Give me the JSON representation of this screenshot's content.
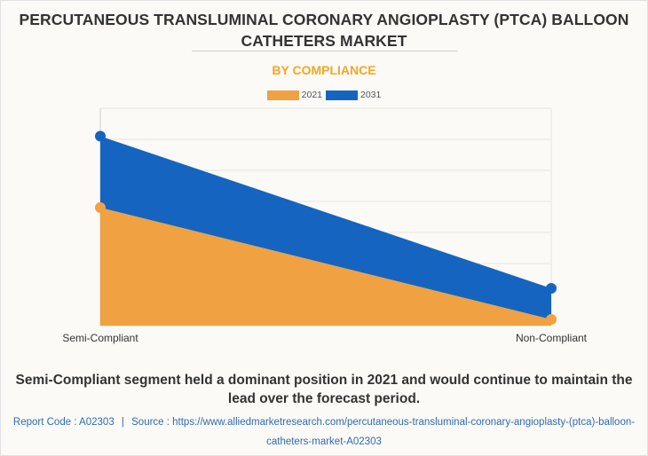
{
  "header": {
    "title": "PERCUTANEOUS TRANSLUMINAL CORONARY ANGIOPLASTY (PTCA) BALLOON CATHETERS MARKET",
    "subtitle": "BY COMPLIANCE"
  },
  "colors": {
    "series_2021": "#f0a141",
    "series_2031": "#1565c0",
    "subtitle": "#f5a623",
    "source_link": "#2e6bb3"
  },
  "chart_data": {
    "type": "area",
    "stacked": true,
    "title": "BY COMPLIANCE",
    "categories": [
      "Semi-Compliant",
      "Non-Compliant"
    ],
    "series": [
      {
        "name": "2021",
        "values": [
          3.8,
          0.2
        ]
      },
      {
        "name": "2031",
        "values": [
          2.3,
          1.0
        ]
      }
    ],
    "ylim": [
      0,
      7
    ],
    "y_ticks_labeled": false,
    "xlabel": "",
    "ylabel": "",
    "grid": true,
    "legend": "top-center",
    "units_note": "values estimated in gridline units; no axis values shown"
  },
  "footer": {
    "summary": "Semi-Compliant segment held a dominant position in 2021 and would continue to maintain the lead over the forecast period.",
    "report_code": "Report Code : A02303",
    "separator": "|",
    "source": "Source : https://www.alliedmarketresearch.com/percutaneous-transluminal-coronary-angioplasty-(ptca)-balloon-catheters-market-A02303"
  }
}
